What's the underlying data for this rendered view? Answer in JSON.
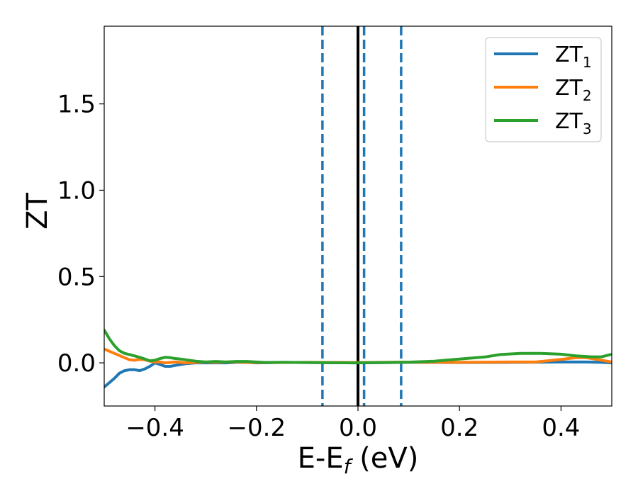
{
  "chart_data": {
    "type": "line",
    "title": "",
    "xlabel": "E-E",
    "xlabel_sub": "f",
    "xlabel_unit": " (eV)",
    "ylabel": "ZT",
    "xlim": [
      -0.5,
      0.5
    ],
    "ylim": [
      -0.25,
      1.95
    ],
    "xticks": [
      -0.4,
      -0.2,
      0.0,
      0.2,
      0.4
    ],
    "xtick_labels": [
      "−0.4",
      "−0.2",
      "0.0",
      "0.2",
      "0.4"
    ],
    "yticks": [
      0.0,
      0.5,
      1.0,
      1.5
    ],
    "ytick_labels": [
      "0.0",
      "0.5",
      "1.0",
      "1.5"
    ],
    "grid": false,
    "legend_position": "top-right",
    "vlines": [
      {
        "x": -0.07,
        "style": "dashed",
        "color": "#1f77b4"
      },
      {
        "x": 0.0,
        "style": "solid",
        "color": "#000000"
      },
      {
        "x": 0.012,
        "style": "dashed",
        "color": "#1f77b4"
      },
      {
        "x": 0.085,
        "style": "dashed",
        "color": "#1f77b4"
      }
    ],
    "series": [
      {
        "name": "ZT",
        "name_sub": "1",
        "color": "#1f77b4",
        "x": [
          -0.5,
          -0.48,
          -0.47,
          -0.46,
          -0.45,
          -0.44,
          -0.43,
          -0.42,
          -0.41,
          -0.4,
          -0.39,
          -0.38,
          -0.37,
          -0.36,
          -0.35,
          -0.34,
          -0.32,
          -0.3,
          -0.28,
          -0.26,
          -0.24,
          -0.22,
          -0.2,
          -0.15,
          -0.1,
          0.0,
          0.1,
          0.2,
          0.3,
          0.4,
          0.45,
          0.48,
          0.5
        ],
        "y": [
          -0.14,
          -0.09,
          -0.06,
          -0.045,
          -0.04,
          -0.04,
          -0.045,
          -0.035,
          -0.02,
          0.0,
          -0.01,
          -0.02,
          -0.02,
          -0.015,
          -0.01,
          -0.005,
          0.0,
          0.0,
          0.0,
          0.0,
          0.003,
          0.003,
          0.0,
          0.003,
          0.002,
          0.0,
          0.003,
          0.002,
          0.003,
          0.005,
          0.005,
          0.003,
          0.0
        ]
      },
      {
        "name": "ZT",
        "name_sub": "2",
        "color": "#ff7f0e",
        "x": [
          -0.5,
          -0.48,
          -0.46,
          -0.45,
          -0.44,
          -0.43,
          -0.42,
          -0.41,
          -0.4,
          -0.39,
          -0.38,
          -0.36,
          -0.34,
          -0.32,
          -0.3,
          -0.28,
          -0.26,
          -0.24,
          -0.22,
          -0.2,
          -0.15,
          -0.1,
          0.0,
          0.1,
          0.2,
          0.3,
          0.35,
          0.4,
          0.43,
          0.45,
          0.47,
          0.5
        ],
        "y": [
          0.08,
          0.055,
          0.03,
          0.018,
          0.015,
          0.02,
          0.018,
          0.01,
          0.005,
          0.005,
          0.0,
          0.005,
          0.0,
          0.003,
          0.005,
          0.003,
          0.005,
          0.005,
          0.003,
          0.002,
          0.002,
          0.003,
          0.002,
          0.004,
          0.003,
          0.005,
          0.005,
          0.02,
          0.03,
          0.03,
          0.02,
          0.005
        ]
      },
      {
        "name": "ZT",
        "name_sub": "3",
        "color": "#2ca02c",
        "x": [
          -0.5,
          -0.49,
          -0.48,
          -0.47,
          -0.46,
          -0.45,
          -0.44,
          -0.43,
          -0.42,
          -0.41,
          -0.4,
          -0.39,
          -0.38,
          -0.37,
          -0.36,
          -0.35,
          -0.34,
          -0.32,
          -0.3,
          -0.28,
          -0.26,
          -0.24,
          -0.22,
          -0.2,
          -0.18,
          -0.15,
          -0.1,
          0.0,
          0.1,
          0.15,
          0.2,
          0.25,
          0.28,
          0.32,
          0.36,
          0.4,
          0.43,
          0.46,
          0.48,
          0.5
        ],
        "y": [
          0.19,
          0.14,
          0.1,
          0.07,
          0.055,
          0.048,
          0.04,
          0.032,
          0.022,
          0.012,
          0.015,
          0.025,
          0.032,
          0.03,
          0.025,
          0.022,
          0.018,
          0.01,
          0.005,
          0.008,
          0.005,
          0.008,
          0.008,
          0.005,
          0.002,
          0.003,
          0.002,
          0.0,
          0.004,
          0.01,
          0.022,
          0.034,
          0.048,
          0.055,
          0.055,
          0.05,
          0.04,
          0.035,
          0.035,
          0.05
        ]
      }
    ]
  }
}
